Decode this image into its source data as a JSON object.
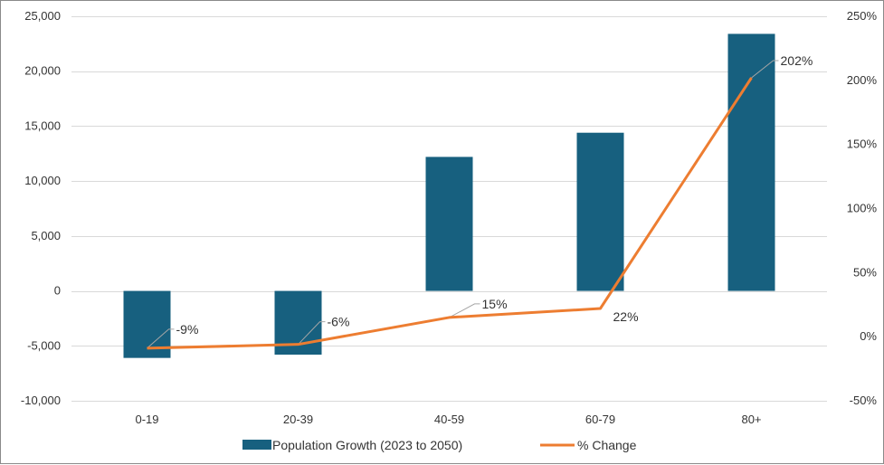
{
  "chart_data": {
    "type": "bar",
    "categories": [
      "0-19",
      "20-39",
      "40-59",
      "60-79",
      "80+"
    ],
    "series": [
      {
        "name": "Population Growth (2023 to 2050)",
        "type": "bar",
        "axis": "left",
        "color": "#17607f",
        "values": [
          -6100,
          -5800,
          12200,
          14400,
          23400
        ]
      },
      {
        "name": "% Change",
        "type": "line",
        "axis": "right",
        "color": "#ed7d31",
        "values": [
          -9,
          -6,
          15,
          22,
          202
        ],
        "labels": [
          "-9%",
          "-6%",
          "15%",
          "22%",
          "202%"
        ]
      }
    ],
    "y_left": {
      "ylim": [
        -10000,
        25000
      ],
      "ticks": [
        -10000,
        -5000,
        0,
        5000,
        10000,
        15000,
        20000,
        25000
      ],
      "tick_labels": [
        "-10,000",
        "-5,000",
        "0",
        "5,000",
        "10,000",
        "15,000",
        "20,000",
        "25,000"
      ]
    },
    "y_right": {
      "ylim": [
        -50,
        250
      ],
      "ticks": [
        -50,
        0,
        50,
        100,
        150,
        200,
        250
      ],
      "tick_labels": [
        "-50%",
        "0%",
        "50%",
        "100%",
        "150%",
        "200%",
        "250%"
      ]
    },
    "grid": true,
    "legend": "bottom",
    "title": "",
    "xlabel": "",
    "ylabel": ""
  }
}
